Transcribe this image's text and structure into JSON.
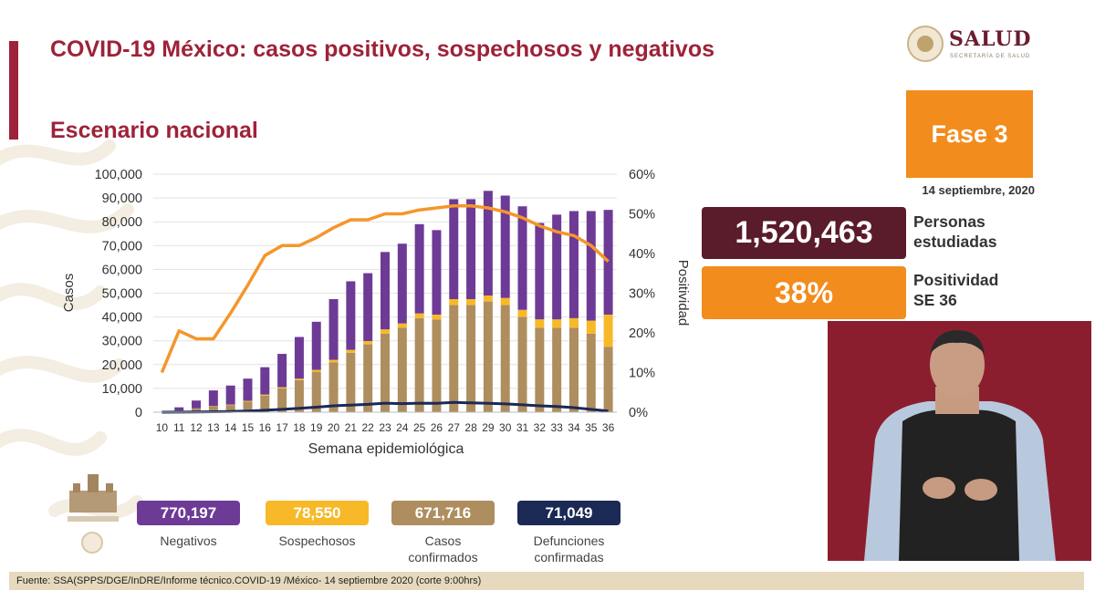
{
  "header": {
    "title": "COVID-19 México: casos positivos, sospechosos y negativos",
    "subtitle": "Escenario nacional"
  },
  "logo": {
    "name": "SALUD",
    "sub": "SECRETARÍA DE SALUD"
  },
  "phase": {
    "label": "Fase 3",
    "date": "14 septiembre, 2020"
  },
  "stats": {
    "studied_value": "1,520,463",
    "studied_label_1": "Personas",
    "studied_label_2": "estudiadas",
    "positivity_value": "38%",
    "positivity_label_1": "Positividad",
    "positivity_label_2": "SE 36"
  },
  "legend": {
    "negativos_value": "770,197",
    "negativos_label": "Negativos",
    "sospechosos_value": "78,550",
    "sospechosos_label": "Sospechosos",
    "confirmados_value": "671,716",
    "confirmados_label_1": "Casos",
    "confirmados_label_2": "confirmados",
    "defunciones_value": "71,049",
    "defunciones_label_1": "Defunciones",
    "defunciones_label_2": "confirmadas"
  },
  "footer": "Fuente: SSA(SPPS/DGE/InDRE/Informe técnico.COVID-19 /México- 14 septiembre 2020 (corte 9:00hrs)",
  "colors": {
    "negativos": "#6d3a96",
    "sospechosos": "#f7b928",
    "confirmados": "#ae8d5f",
    "defunciones": "#1b2955",
    "positividad": "#f5962a",
    "brand": "#9e2239"
  },
  "chart_data": {
    "type": "bar",
    "stacked": true,
    "xlabel": "Semana epidemiológica",
    "ylabel": "Casos",
    "y2label": "Positividad",
    "ylim": [
      0,
      100000
    ],
    "y2lim": [
      0,
      60
    ],
    "yticks": [
      "0",
      "10,000",
      "20,000",
      "30,000",
      "40,000",
      "50,000",
      "60,000",
      "70,000",
      "80,000",
      "90,000",
      "100,000"
    ],
    "y2ticks": [
      "0%",
      "10%",
      "20%",
      "30%",
      "40%",
      "50%",
      "60%"
    ],
    "categories": [
      "10",
      "11",
      "12",
      "13",
      "14",
      "15",
      "16",
      "17",
      "18",
      "19",
      "20",
      "21",
      "22",
      "23",
      "24",
      "25",
      "26",
      "27",
      "28",
      "29",
      "30",
      "31",
      "32",
      "33",
      "34",
      "35",
      "36"
    ],
    "series": [
      {
        "name": "Casos confirmados",
        "kind": "bar",
        "values": [
          0,
          700,
          1500,
          2500,
          3000,
          4500,
          7000,
          10000,
          13500,
          17000,
          21000,
          25000,
          28500,
          33000,
          35500,
          39500,
          39000,
          45000,
          45000,
          46500,
          45000,
          40000,
          35500,
          35500,
          35500,
          33000,
          27500
        ]
      },
      {
        "name": "Sospechosos",
        "kind": "bar",
        "values": [
          0,
          50,
          100,
          150,
          200,
          300,
          400,
          500,
          600,
          800,
          1000,
          1200,
          1400,
          1800,
          1800,
          2000,
          2000,
          2500,
          2500,
          2500,
          3000,
          3000,
          3500,
          3500,
          4000,
          5500,
          13500
        ]
      },
      {
        "name": "Negativos",
        "kind": "bar",
        "values": [
          0,
          1300,
          3300,
          6500,
          8000,
          9300,
          11500,
          14000,
          17500,
          20200,
          25500,
          28800,
          28500,
          32500,
          33500,
          37500,
          35500,
          42000,
          42000,
          44000,
          43000,
          43500,
          40500,
          44000,
          45000,
          46000,
          44000
        ]
      },
      {
        "name": "Defunciones confirmadas",
        "kind": "line",
        "values": [
          0,
          50,
          100,
          200,
          300,
          500,
          800,
          1200,
          1600,
          2100,
          2700,
          3000,
          3300,
          3800,
          3600,
          3800,
          3700,
          4100,
          3900,
          3700,
          3500,
          3100,
          2700,
          2400,
          1900,
          1200,
          500
        ]
      },
      {
        "name": "Positividad",
        "kind": "line",
        "axis": "right",
        "unit": "%",
        "values": [
          10,
          20.5,
          18.5,
          18.5,
          25,
          32,
          39.5,
          42,
          42,
          44,
          46.5,
          48.5,
          48.5,
          50,
          50,
          51,
          51.5,
          52,
          52,
          51.5,
          50.5,
          49,
          47,
          45.5,
          44.5,
          42,
          38
        ]
      }
    ]
  }
}
